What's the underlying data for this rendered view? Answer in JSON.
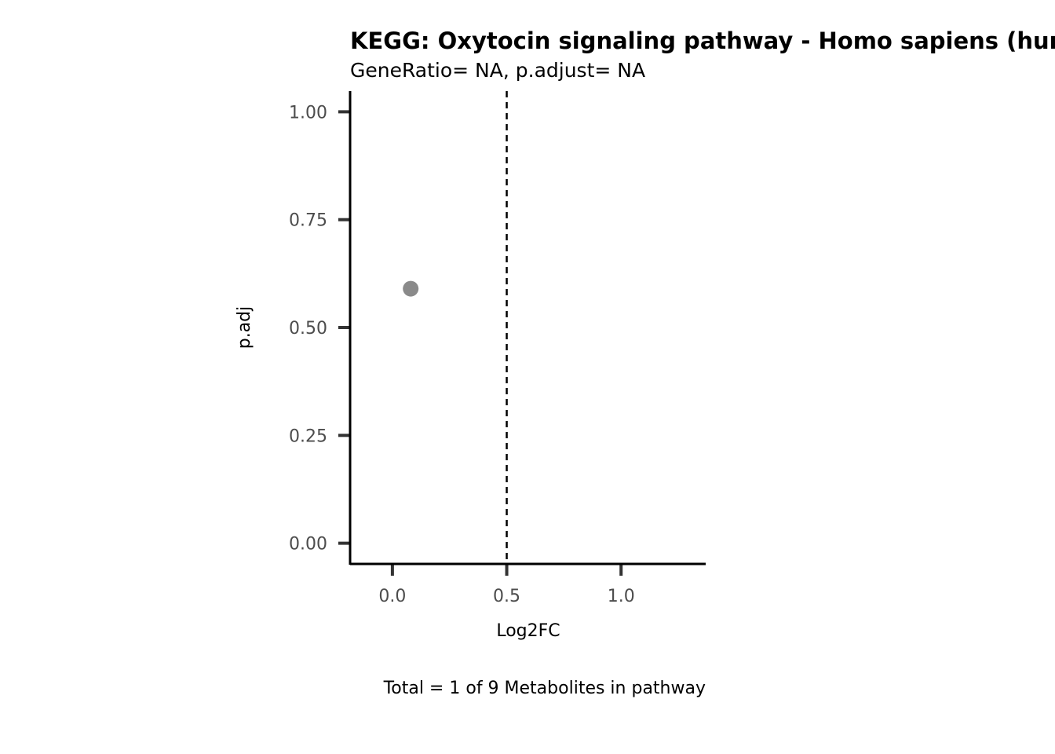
{
  "chart_data": {
    "type": "scatter",
    "title": "KEGG: Oxytocin signaling pathway - Homo sapiens (human)",
    "subtitle": "GeneRatio= NA, p.adjust= NA",
    "xlabel": "Log2FC",
    "ylabel": "p.adj",
    "caption": "Total = 1 of 9 Metabolites in pathway",
    "xlim": [
      -0.185,
      1.37
    ],
    "ylim": [
      -0.048,
      1.048
    ],
    "x_ticks": [
      {
        "value": 0.0,
        "label": "0.0"
      },
      {
        "value": 0.5,
        "label": "0.5"
      },
      {
        "value": 1.0,
        "label": "1.0"
      }
    ],
    "y_ticks": [
      {
        "value": 0.0,
        "label": "0.00"
      },
      {
        "value": 0.25,
        "label": "0.25"
      },
      {
        "value": 0.5,
        "label": "0.50"
      },
      {
        "value": 0.75,
        "label": "0.75"
      },
      {
        "value": 1.0,
        "label": "1.00"
      }
    ],
    "reference_line": {
      "axis": "x",
      "value": 0.5,
      "style": "dashed"
    },
    "points": [
      {
        "x": 0.08,
        "y": 0.59
      }
    ],
    "point_color": "#8a8a8a",
    "grid": false
  }
}
